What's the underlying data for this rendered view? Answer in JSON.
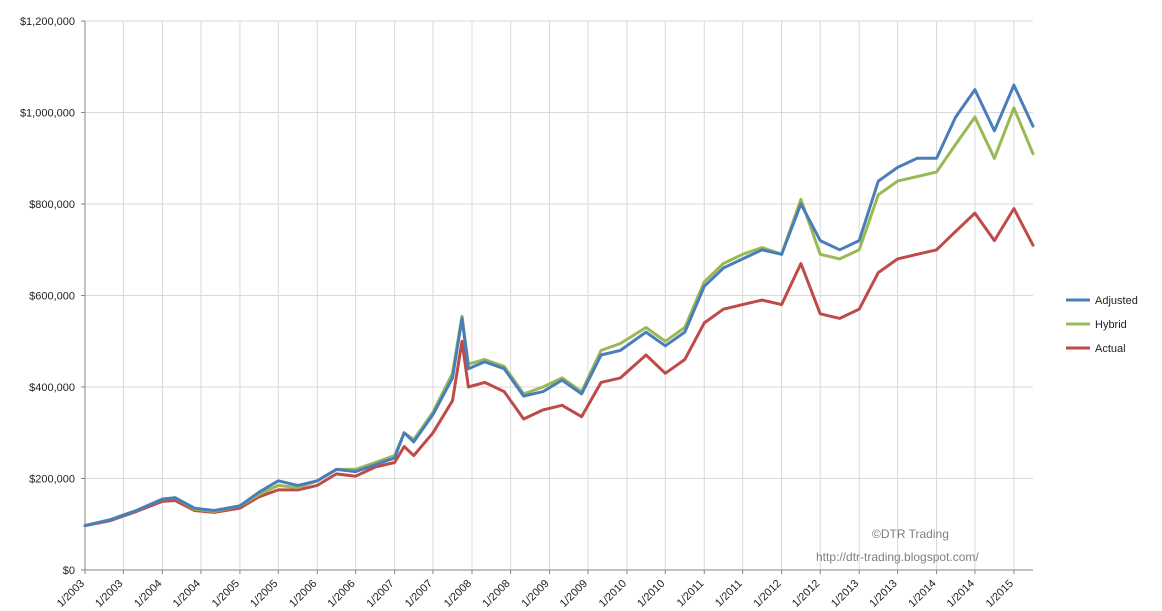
{
  "chart_data": {
    "type": "line",
    "title": "",
    "xlabel": "",
    "ylabel": "",
    "ylim": [
      0,
      1200000
    ],
    "y_ticks": [
      {
        "value": 0,
        "label": "$0"
      },
      {
        "value": 200000,
        "label": "$200,000"
      },
      {
        "value": 400000,
        "label": "$400,000"
      },
      {
        "value": 600000,
        "label": "$600,000"
      },
      {
        "value": 800000,
        "label": "$800,000"
      },
      {
        "value": 1000000,
        "label": "$1,000,000"
      },
      {
        "value": 1200000,
        "label": "$1,200,000"
      }
    ],
    "x_range": [
      "2003-01",
      "2015-04"
    ],
    "x_ticks": [
      {
        "value": "2003-01",
        "label": "1/2003"
      },
      {
        "value": "2003-07",
        "label": "1/2003"
      },
      {
        "value": "2004-01",
        "label": "1/2004"
      },
      {
        "value": "2004-07",
        "label": "1/2004"
      },
      {
        "value": "2005-01",
        "label": "1/2005"
      },
      {
        "value": "2005-07",
        "label": "1/2005"
      },
      {
        "value": "2006-01",
        "label": "1/2006"
      },
      {
        "value": "2006-07",
        "label": "1/2006"
      },
      {
        "value": "2007-01",
        "label": "1/2007"
      },
      {
        "value": "2007-07",
        "label": "1/2007"
      },
      {
        "value": "2008-01",
        "label": "1/2008"
      },
      {
        "value": "2008-07",
        "label": "1/2008"
      },
      {
        "value": "2009-01",
        "label": "1/2009"
      },
      {
        "value": "2009-07",
        "label": "1/2009"
      },
      {
        "value": "2010-01",
        "label": "1/2010"
      },
      {
        "value": "2010-07",
        "label": "1/2010"
      },
      {
        "value": "2011-01",
        "label": "1/2011"
      },
      {
        "value": "2011-07",
        "label": "1/2011"
      },
      {
        "value": "2012-01",
        "label": "1/2012"
      },
      {
        "value": "2012-07",
        "label": "1/2012"
      },
      {
        "value": "2013-01",
        "label": "1/2013"
      },
      {
        "value": "2013-07",
        "label": "1/2013"
      },
      {
        "value": "2014-01",
        "label": "1/2014"
      },
      {
        "value": "2014-07",
        "label": "1/2014"
      },
      {
        "value": "2015-01",
        "label": "1/2015"
      }
    ],
    "grid": true,
    "legend": "right",
    "annotations": [
      "©DTR Trading",
      "http://dtr-trading.blogspot.com/"
    ],
    "series": [
      {
        "name": "Adjusted",
        "color": "#4a7ebb",
        "points": [
          [
            "2003-01-01",
            97000
          ],
          [
            "2003-05-01",
            110000
          ],
          [
            "2003-09-01",
            130000
          ],
          [
            "2004-01-01",
            155000
          ],
          [
            "2004-03-01",
            158000
          ],
          [
            "2004-06-01",
            135000
          ],
          [
            "2004-09-01",
            130000
          ],
          [
            "2005-01-01",
            140000
          ],
          [
            "2005-04-01",
            170000
          ],
          [
            "2005-07-01",
            195000
          ],
          [
            "2005-10-01",
            185000
          ],
          [
            "2006-01-01",
            195000
          ],
          [
            "2006-04-01",
            220000
          ],
          [
            "2006-07-01",
            215000
          ],
          [
            "2006-10-01",
            230000
          ],
          [
            "2007-01-01",
            245000
          ],
          [
            "2007-02-15",
            300000
          ],
          [
            "2007-04-01",
            280000
          ],
          [
            "2007-07-01",
            340000
          ],
          [
            "2007-10-01",
            420000
          ],
          [
            "2007-11-15",
            550000
          ],
          [
            "2007-12-15",
            440000
          ],
          [
            "2008-03-01",
            455000
          ],
          [
            "2008-06-01",
            440000
          ],
          [
            "2008-09-01",
            380000
          ],
          [
            "2008-12-01",
            390000
          ],
          [
            "2009-03-01",
            415000
          ],
          [
            "2009-06-01",
            385000
          ],
          [
            "2009-09-01",
            470000
          ],
          [
            "2009-12-01",
            480000
          ],
          [
            "2010-04-01",
            520000
          ],
          [
            "2010-07-01",
            490000
          ],
          [
            "2010-10-01",
            520000
          ],
          [
            "2011-01-01",
            620000
          ],
          [
            "2011-04-01",
            660000
          ],
          [
            "2011-07-01",
            680000
          ],
          [
            "2011-10-01",
            700000
          ],
          [
            "2012-01-01",
            690000
          ],
          [
            "2012-04-01",
            800000
          ],
          [
            "2012-07-01",
            720000
          ],
          [
            "2012-10-01",
            700000
          ],
          [
            "2013-01-01",
            720000
          ],
          [
            "2013-04-01",
            850000
          ],
          [
            "2013-07-01",
            880000
          ],
          [
            "2013-10-01",
            900000
          ],
          [
            "2014-01-01",
            900000
          ],
          [
            "2014-04-01",
            990000
          ],
          [
            "2014-07-01",
            1050000
          ],
          [
            "2014-10-01",
            960000
          ],
          [
            "2015-01-01",
            1060000
          ],
          [
            "2015-04-01",
            970000
          ]
        ]
      },
      {
        "name": "Hybrid",
        "color": "#98b954",
        "points": [
          [
            "2003-01-01",
            97000
          ],
          [
            "2003-05-01",
            110000
          ],
          [
            "2003-09-01",
            130000
          ],
          [
            "2004-01-01",
            155000
          ],
          [
            "2004-03-01",
            158000
          ],
          [
            "2004-06-01",
            133000
          ],
          [
            "2004-09-01",
            128000
          ],
          [
            "2005-01-01",
            140000
          ],
          [
            "2005-04-01",
            165000
          ],
          [
            "2005-07-01",
            185000
          ],
          [
            "2005-10-01",
            180000
          ],
          [
            "2006-01-01",
            195000
          ],
          [
            "2006-04-01",
            220000
          ],
          [
            "2006-07-01",
            220000
          ],
          [
            "2006-10-01",
            235000
          ],
          [
            "2007-01-01",
            250000
          ],
          [
            "2007-02-15",
            300000
          ],
          [
            "2007-04-01",
            285000
          ],
          [
            "2007-07-01",
            345000
          ],
          [
            "2007-10-01",
            430000
          ],
          [
            "2007-11-15",
            555000
          ],
          [
            "2007-12-15",
            450000
          ],
          [
            "2008-03-01",
            460000
          ],
          [
            "2008-06-01",
            445000
          ],
          [
            "2008-09-01",
            385000
          ],
          [
            "2008-12-01",
            400000
          ],
          [
            "2009-03-01",
            420000
          ],
          [
            "2009-06-01",
            390000
          ],
          [
            "2009-09-01",
            480000
          ],
          [
            "2009-12-01",
            495000
          ],
          [
            "2010-04-01",
            530000
          ],
          [
            "2010-07-01",
            500000
          ],
          [
            "2010-10-01",
            530000
          ],
          [
            "2011-01-01",
            630000
          ],
          [
            "2011-04-01",
            670000
          ],
          [
            "2011-07-01",
            690000
          ],
          [
            "2011-10-01",
            705000
          ],
          [
            "2012-01-01",
            690000
          ],
          [
            "2012-04-01",
            810000
          ],
          [
            "2012-07-01",
            690000
          ],
          [
            "2012-10-01",
            680000
          ],
          [
            "2013-01-01",
            700000
          ],
          [
            "2013-04-01",
            820000
          ],
          [
            "2013-07-01",
            850000
          ],
          [
            "2013-10-01",
            860000
          ],
          [
            "2014-01-01",
            870000
          ],
          [
            "2014-04-01",
            930000
          ],
          [
            "2014-07-01",
            990000
          ],
          [
            "2014-10-01",
            900000
          ],
          [
            "2015-01-01",
            1010000
          ],
          [
            "2015-04-01",
            910000
          ]
        ]
      },
      {
        "name": "Actual",
        "color": "#be4b48",
        "points": [
          [
            "2003-01-01",
            97000
          ],
          [
            "2003-05-01",
            108000
          ],
          [
            "2003-09-01",
            128000
          ],
          [
            "2004-01-01",
            150000
          ],
          [
            "2004-03-01",
            152000
          ],
          [
            "2004-06-01",
            130000
          ],
          [
            "2004-09-01",
            126000
          ],
          [
            "2005-01-01",
            135000
          ],
          [
            "2005-04-01",
            160000
          ],
          [
            "2005-07-01",
            175000
          ],
          [
            "2005-10-01",
            175000
          ],
          [
            "2006-01-01",
            185000
          ],
          [
            "2006-04-01",
            210000
          ],
          [
            "2006-07-01",
            205000
          ],
          [
            "2006-10-01",
            225000
          ],
          [
            "2007-01-01",
            235000
          ],
          [
            "2007-02-15",
            270000
          ],
          [
            "2007-04-01",
            250000
          ],
          [
            "2007-07-01",
            300000
          ],
          [
            "2007-10-01",
            370000
          ],
          [
            "2007-11-15",
            500000
          ],
          [
            "2007-12-15",
            400000
          ],
          [
            "2008-03-01",
            410000
          ],
          [
            "2008-06-01",
            390000
          ],
          [
            "2008-09-01",
            330000
          ],
          [
            "2008-12-01",
            350000
          ],
          [
            "2009-03-01",
            360000
          ],
          [
            "2009-06-01",
            335000
          ],
          [
            "2009-09-01",
            410000
          ],
          [
            "2009-12-01",
            420000
          ],
          [
            "2010-04-01",
            470000
          ],
          [
            "2010-07-01",
            430000
          ],
          [
            "2010-10-01",
            460000
          ],
          [
            "2011-01-01",
            540000
          ],
          [
            "2011-04-01",
            570000
          ],
          [
            "2011-07-01",
            580000
          ],
          [
            "2011-10-01",
            590000
          ],
          [
            "2012-01-01",
            580000
          ],
          [
            "2012-04-01",
            670000
          ],
          [
            "2012-07-01",
            560000
          ],
          [
            "2012-10-01",
            550000
          ],
          [
            "2013-01-01",
            570000
          ],
          [
            "2013-04-01",
            650000
          ],
          [
            "2013-07-01",
            680000
          ],
          [
            "2013-10-01",
            690000
          ],
          [
            "2014-01-01",
            700000
          ],
          [
            "2014-04-01",
            740000
          ],
          [
            "2014-07-01",
            780000
          ],
          [
            "2014-10-01",
            720000
          ],
          [
            "2015-01-01",
            790000
          ],
          [
            "2015-04-01",
            710000
          ]
        ]
      }
    ]
  }
}
